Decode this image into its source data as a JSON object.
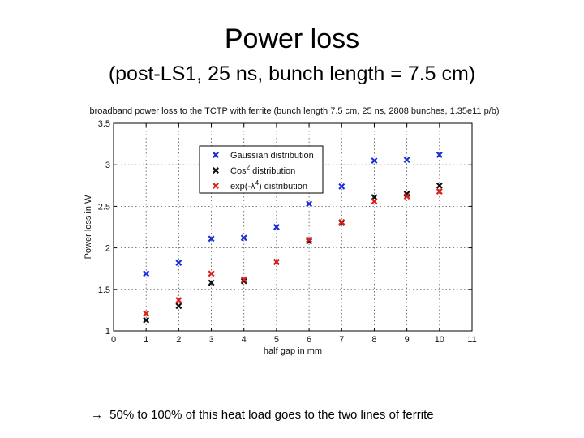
{
  "slide": {
    "title": "Power loss",
    "subtitle": "(post-LS1, 25 ns, bunch length = 7.5 cm)",
    "footnote_arrow": "→",
    "footnote": "50% to 100% of this heat load goes to the two lines of ferrite"
  },
  "colors": {
    "gaussian": "#1c2fd6",
    "cos2": "#111111",
    "exp": "#e0201c",
    "axis": "#000000",
    "grid": "#555555"
  },
  "chart_data": {
    "type": "scatter",
    "title": "broadband power loss to the TCTP with ferrite (bunch length 7.5 cm, 25 ns, 2808 bunches, 1.35e11 p/b)",
    "xlabel": "half gap in mm",
    "ylabel": "Power loss in W",
    "xlim": [
      0,
      11
    ],
    "ylim": [
      1,
      3.5
    ],
    "xticks": [
      0,
      1,
      2,
      3,
      4,
      5,
      6,
      7,
      8,
      9,
      10,
      11
    ],
    "xtick_labels": [
      "0",
      "1",
      "2",
      "3",
      "4",
      "5",
      "6",
      "7",
      "8",
      "9",
      "10",
      "11"
    ],
    "yticks": [
      1,
      1.5,
      2,
      2.5,
      3,
      3.5
    ],
    "ytick_labels": [
      "1",
      "1.5",
      "2",
      "2.5",
      "3",
      "3.5"
    ],
    "grid": true,
    "legend_position": "top-left inside",
    "marker": "×",
    "x": [
      1,
      2,
      3,
      4,
      5,
      6,
      7,
      8,
      9,
      10
    ],
    "series": [
      {
        "name": "Gaussian distribution",
        "legend_main": "Gaussian distribution",
        "legend_sup": "",
        "legend_tail": "",
        "color_key": "gaussian",
        "values": [
          1.69,
          1.82,
          2.11,
          2.12,
          2.25,
          2.53,
          2.74,
          3.05,
          3.06,
          3.12
        ]
      },
      {
        "name": "Cos2 distribution",
        "legend_main": "Cos",
        "legend_sup": "2",
        "legend_tail": " distribution",
        "color_key": "cos2",
        "values": [
          1.13,
          1.3,
          1.58,
          1.6,
          1.83,
          2.08,
          2.3,
          2.61,
          2.65,
          2.75
        ]
      },
      {
        "name": "exp(-λ4) distribution",
        "legend_main": "exp(-λ",
        "legend_sup": "4",
        "legend_tail": ") distribution",
        "color_key": "exp",
        "values": [
          1.21,
          1.37,
          1.69,
          1.62,
          1.83,
          2.1,
          2.31,
          2.56,
          2.62,
          2.68
        ]
      }
    ]
  }
}
